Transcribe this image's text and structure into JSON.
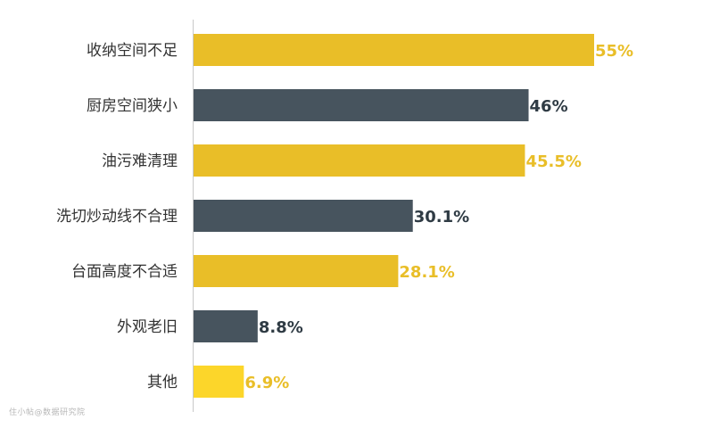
{
  "chart_data": {
    "type": "bar",
    "orientation": "horizontal",
    "categories": [
      "收纳空间不足",
      "厨房空间狭小",
      "油污难清理",
      "洗切炒动线不合理",
      "台面高度不合适",
      "外观老旧",
      "其他"
    ],
    "values": [
      55,
      46,
      45.5,
      30.1,
      28.1,
      8.8,
      6.9
    ],
    "value_labels": [
      "55%",
      "46%",
      "45.5%",
      "30.1%",
      "28.1%",
      "8.8%",
      "6.9%"
    ],
    "bar_colors": [
      "#E9BE28",
      "#47545E",
      "#E9BE28",
      "#47545E",
      "#E9BE28",
      "#47545E",
      "#FCD62A"
    ],
    "label_colors": [
      "#E9BE28",
      "#2F3B44",
      "#E9BE28",
      "#2F3B44",
      "#E9BE28",
      "#2F3B44",
      "#E9BE28"
    ],
    "xlim": [
      0,
      55
    ],
    "grid": false,
    "legend": "none"
  },
  "watermark": "住小帖@数据研究院"
}
